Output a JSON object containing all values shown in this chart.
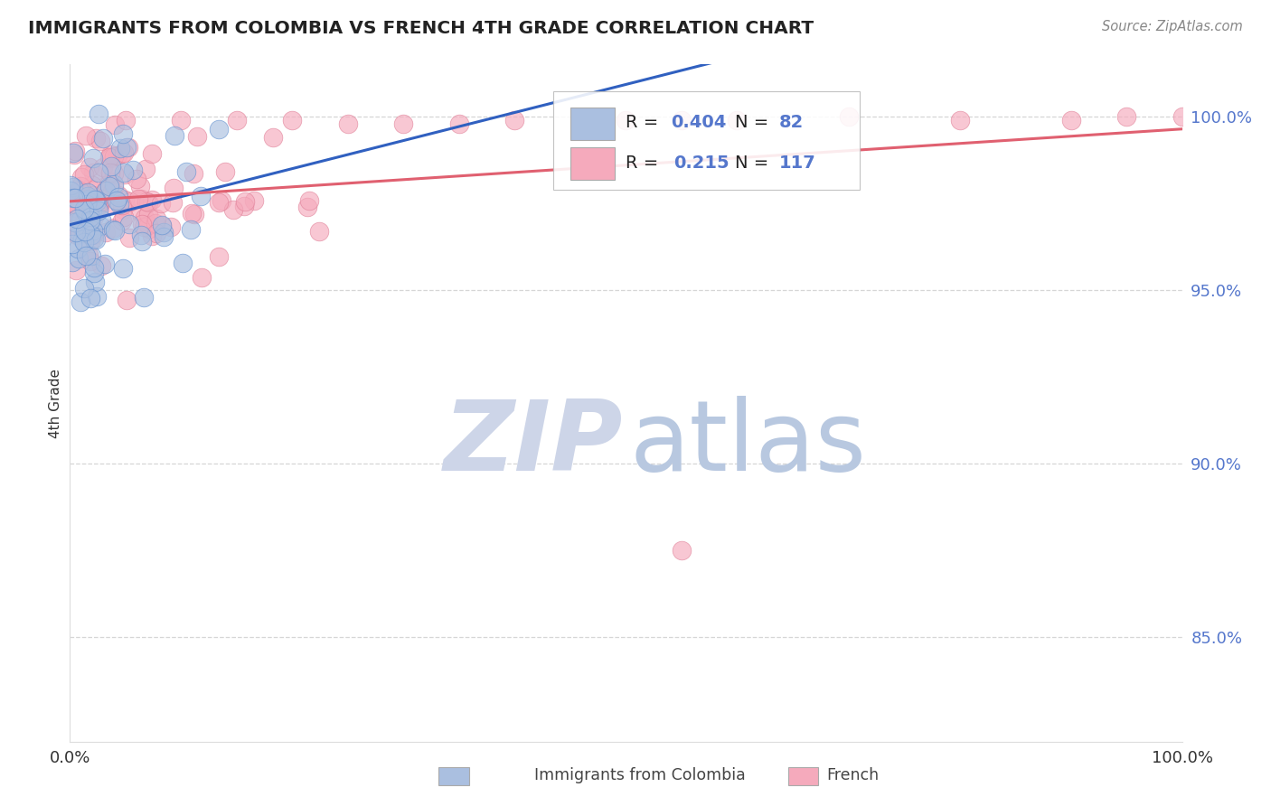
{
  "title": "IMMIGRANTS FROM COLOMBIA VS FRENCH 4TH GRADE CORRELATION CHART",
  "source": "Source: ZipAtlas.com",
  "ylabel": "4th Grade",
  "xmin": 0.0,
  "xmax": 1.0,
  "ymin": 0.82,
  "ymax": 1.015,
  "yticks": [
    0.85,
    0.9,
    0.95,
    1.0
  ],
  "ytick_labels": [
    "85.0%",
    "90.0%",
    "95.0%",
    "100.0%"
  ],
  "blue_R": 0.404,
  "blue_N": 82,
  "pink_R": 0.215,
  "pink_N": 117,
  "blue_fill": "#aabfe0",
  "pink_fill": "#f5aabc",
  "blue_edge": "#6090d0",
  "pink_edge": "#e08098",
  "blue_line": "#3060c0",
  "pink_line": "#e06070",
  "bg": "#ffffff",
  "wm_zip_color": "#cdd5e8",
  "wm_atlas_color": "#b8c8e0",
  "legend_label_colombia": "Immigrants from Colombia",
  "legend_label_french": "French",
  "tick_color": "#5577cc"
}
